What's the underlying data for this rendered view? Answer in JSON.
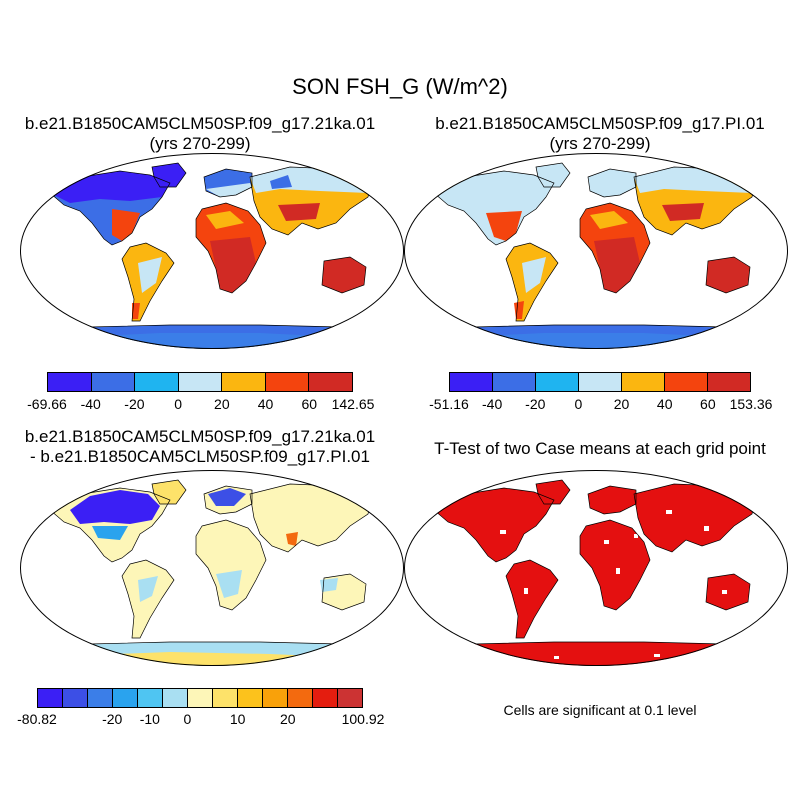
{
  "title": "SON FSH_G (W/m^2)",
  "panels": [
    {
      "line1": "b.e21.B1850CAM5CLM50SP.f09_g17.21ka.01",
      "line2": "(yrs 270-299)",
      "colorbar": {
        "colors": [
          "#3b1ff5",
          "#3c6ee6",
          "#1fb4f0",
          "#c7e6f5",
          "#fbb610",
          "#f4440e",
          "#d12a24"
        ],
        "labels": [
          "-69.66",
          "-40",
          "-20",
          "0",
          "20",
          "40",
          "60",
          "142.65"
        ]
      }
    },
    {
      "line1": "b.e21.B1850CAM5CLM50SP.f09_g17.PI.01",
      "line2": "(yrs 270-299)",
      "colorbar": {
        "colors": [
          "#3b1ff5",
          "#3c6ee6",
          "#1fb4f0",
          "#c7e6f5",
          "#fbb610",
          "#f4440e",
          "#d12a24"
        ],
        "labels": [
          "-51.16",
          "-40",
          "-20",
          "0",
          "20",
          "40",
          "60",
          "153.36"
        ]
      }
    },
    {
      "line1": "b.e21.B1850CAM5CLM50SP.f09_g17.21ka.01",
      "line2": "- b.e21.B1850CAM5CLM50SP.f09_g17.PI.01",
      "colorbar": {
        "colors": [
          "#3b1ff5",
          "#3c4fe6",
          "#3b7ee8",
          "#2aa3ee",
          "#4fc5f2",
          "#a9dff2",
          "#fdf6b8",
          "#fde26a",
          "#fcc21c",
          "#f9a10a",
          "#f36a0f",
          "#e41d0f",
          "#cc3333"
        ],
        "labels": [
          "-80.82",
          "-20",
          "-10",
          "0",
          "10",
          "20",
          "100.92"
        ]
      }
    },
    {
      "line1": "T-Test of two Case means at each grid point",
      "line2": "",
      "note": "Cells are significant at 0.1 level"
    }
  ]
}
